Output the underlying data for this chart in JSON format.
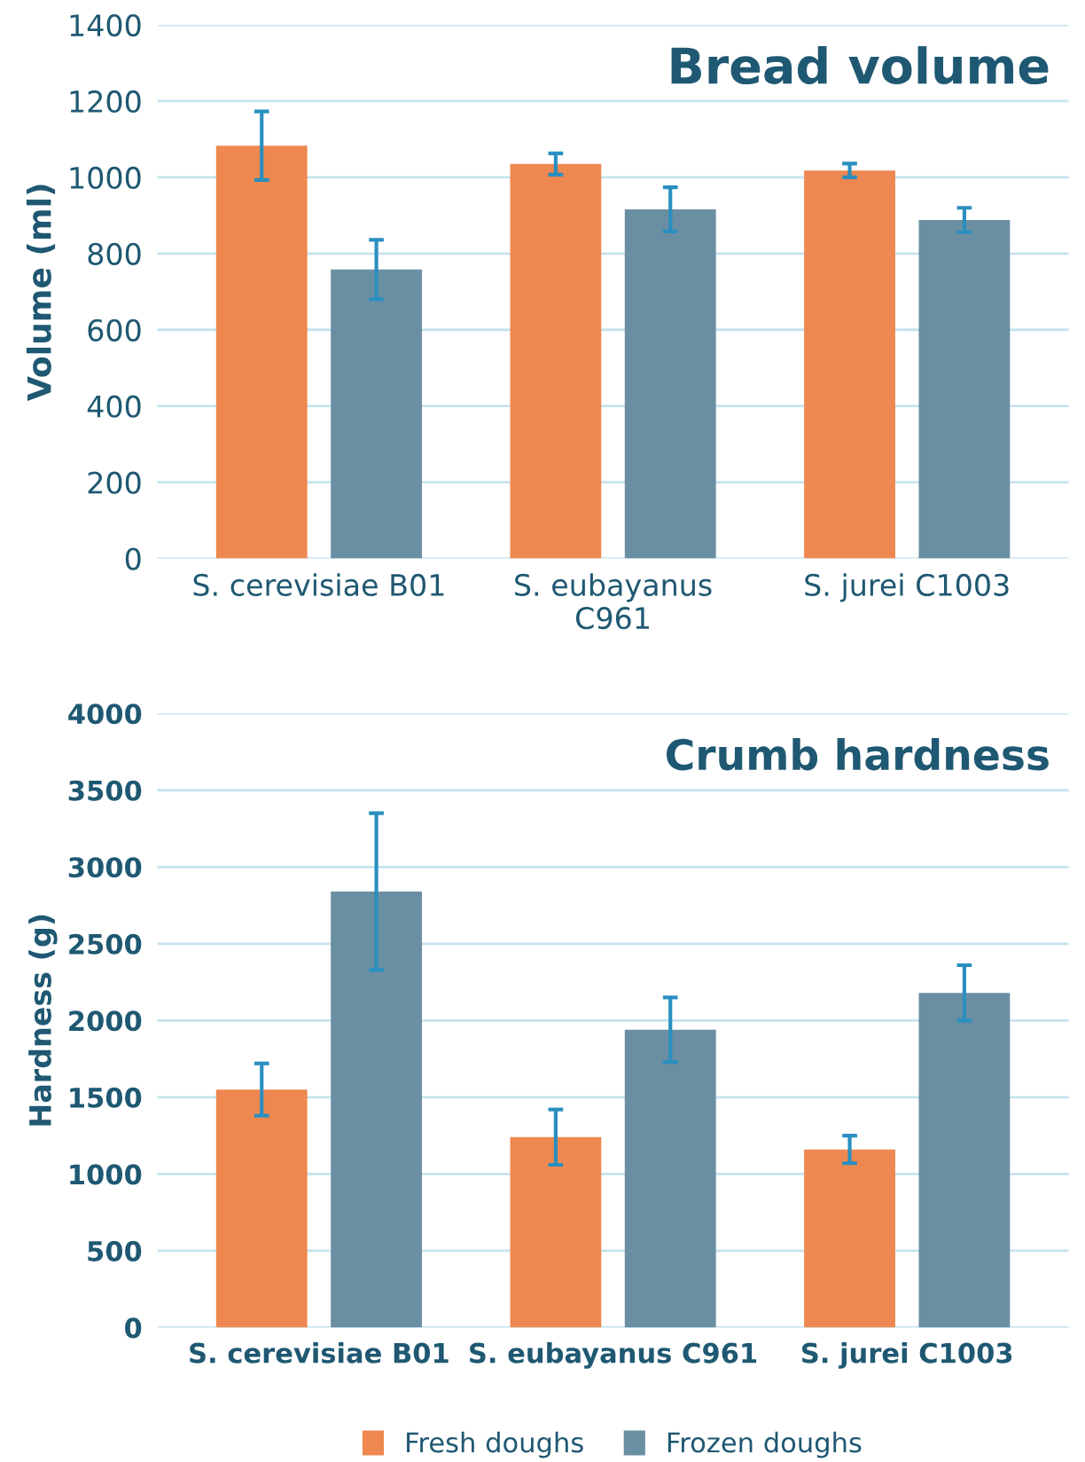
{
  "chart_data": [
    {
      "type": "bar",
      "title": "Bread volume",
      "ylabel": "Volume (ml)",
      "categories": [
        "S. cerevisiae B01",
        "S. eubayanus\nC961",
        "S. jurei C1003"
      ],
      "series": [
        {
          "color": "#ee8850",
          "values": [
            1083,
            1035,
            1018
          ],
          "errors": [
            90,
            28,
            18
          ]
        },
        {
          "color": "#6a8fa2",
          "values": [
            758,
            916,
            888
          ],
          "errors": [
            78,
            58,
            32
          ]
        }
      ],
      "ylim": [
        0,
        1400
      ],
      "yticks": [
        0,
        200,
        400,
        600,
        800,
        1000,
        1200,
        1400
      ],
      "grid": "y",
      "legend": false
    },
    {
      "type": "bar",
      "title": "Crumb hardness",
      "ylabel": "Hardness (g)",
      "categories": [
        "S. cerevisiae B01",
        "S. eubayanus C961",
        "S. jurei C1003"
      ],
      "series": [
        {
          "name": "Fresh doughs",
          "color": "#ee8850",
          "values": [
            1550,
            1240,
            1160
          ],
          "errors": [
            170,
            180,
            90
          ]
        },
        {
          "name": "Frozen doughs",
          "color": "#6a8fa2",
          "values": [
            2840,
            1940,
            2180
          ],
          "errors": [
            510,
            210,
            180
          ]
        }
      ],
      "ylim": [
        0,
        4000
      ],
      "yticks": [
        0,
        500,
        1000,
        1500,
        2000,
        2500,
        3000,
        3500,
        4000
      ],
      "grid": "y",
      "legend": "bottom"
    }
  ]
}
